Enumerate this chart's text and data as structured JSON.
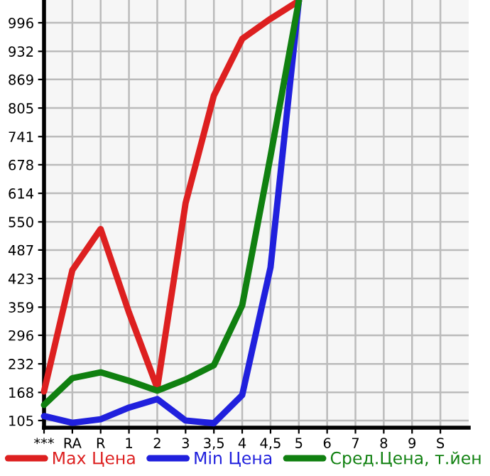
{
  "chart_data": {
    "type": "line",
    "categories": [
      "***",
      "RA",
      "R",
      "1",
      "2",
      "3",
      "3,5",
      "4",
      "4,5",
      "5",
      "6",
      "7",
      "8",
      "9",
      "S"
    ],
    "series": [
      {
        "name": "Max Цена",
        "color": "#dd2020",
        "values": [
          170,
          442,
          534,
          347,
          178,
          592,
          833,
          960,
          1005,
          1045,
          null,
          null,
          null,
          null,
          null
        ]
      },
      {
        "name": "Min Цена",
        "color": "#2020dd",
        "values": [
          115,
          100,
          108,
          134,
          153,
          105,
          99,
          162,
          448,
          1045,
          null,
          null,
          null,
          null,
          null
        ]
      },
      {
        "name": "Сред.Цена, т.йен",
        "color": "#108010",
        "values": [
          140,
          200,
          213,
          194,
          172,
          197,
          229,
          363,
          697,
          1045,
          null,
          null,
          null,
          null,
          null
        ]
      }
    ],
    "ylim": [
      89,
      1047
    ],
    "yticks": [
      105,
      168,
      232,
      296,
      359,
      423,
      487,
      550,
      614,
      678,
      741,
      805,
      869,
      932,
      996
    ],
    "grid": true,
    "legend": "bottom",
    "marker": "none",
    "line_style": "solid"
  }
}
